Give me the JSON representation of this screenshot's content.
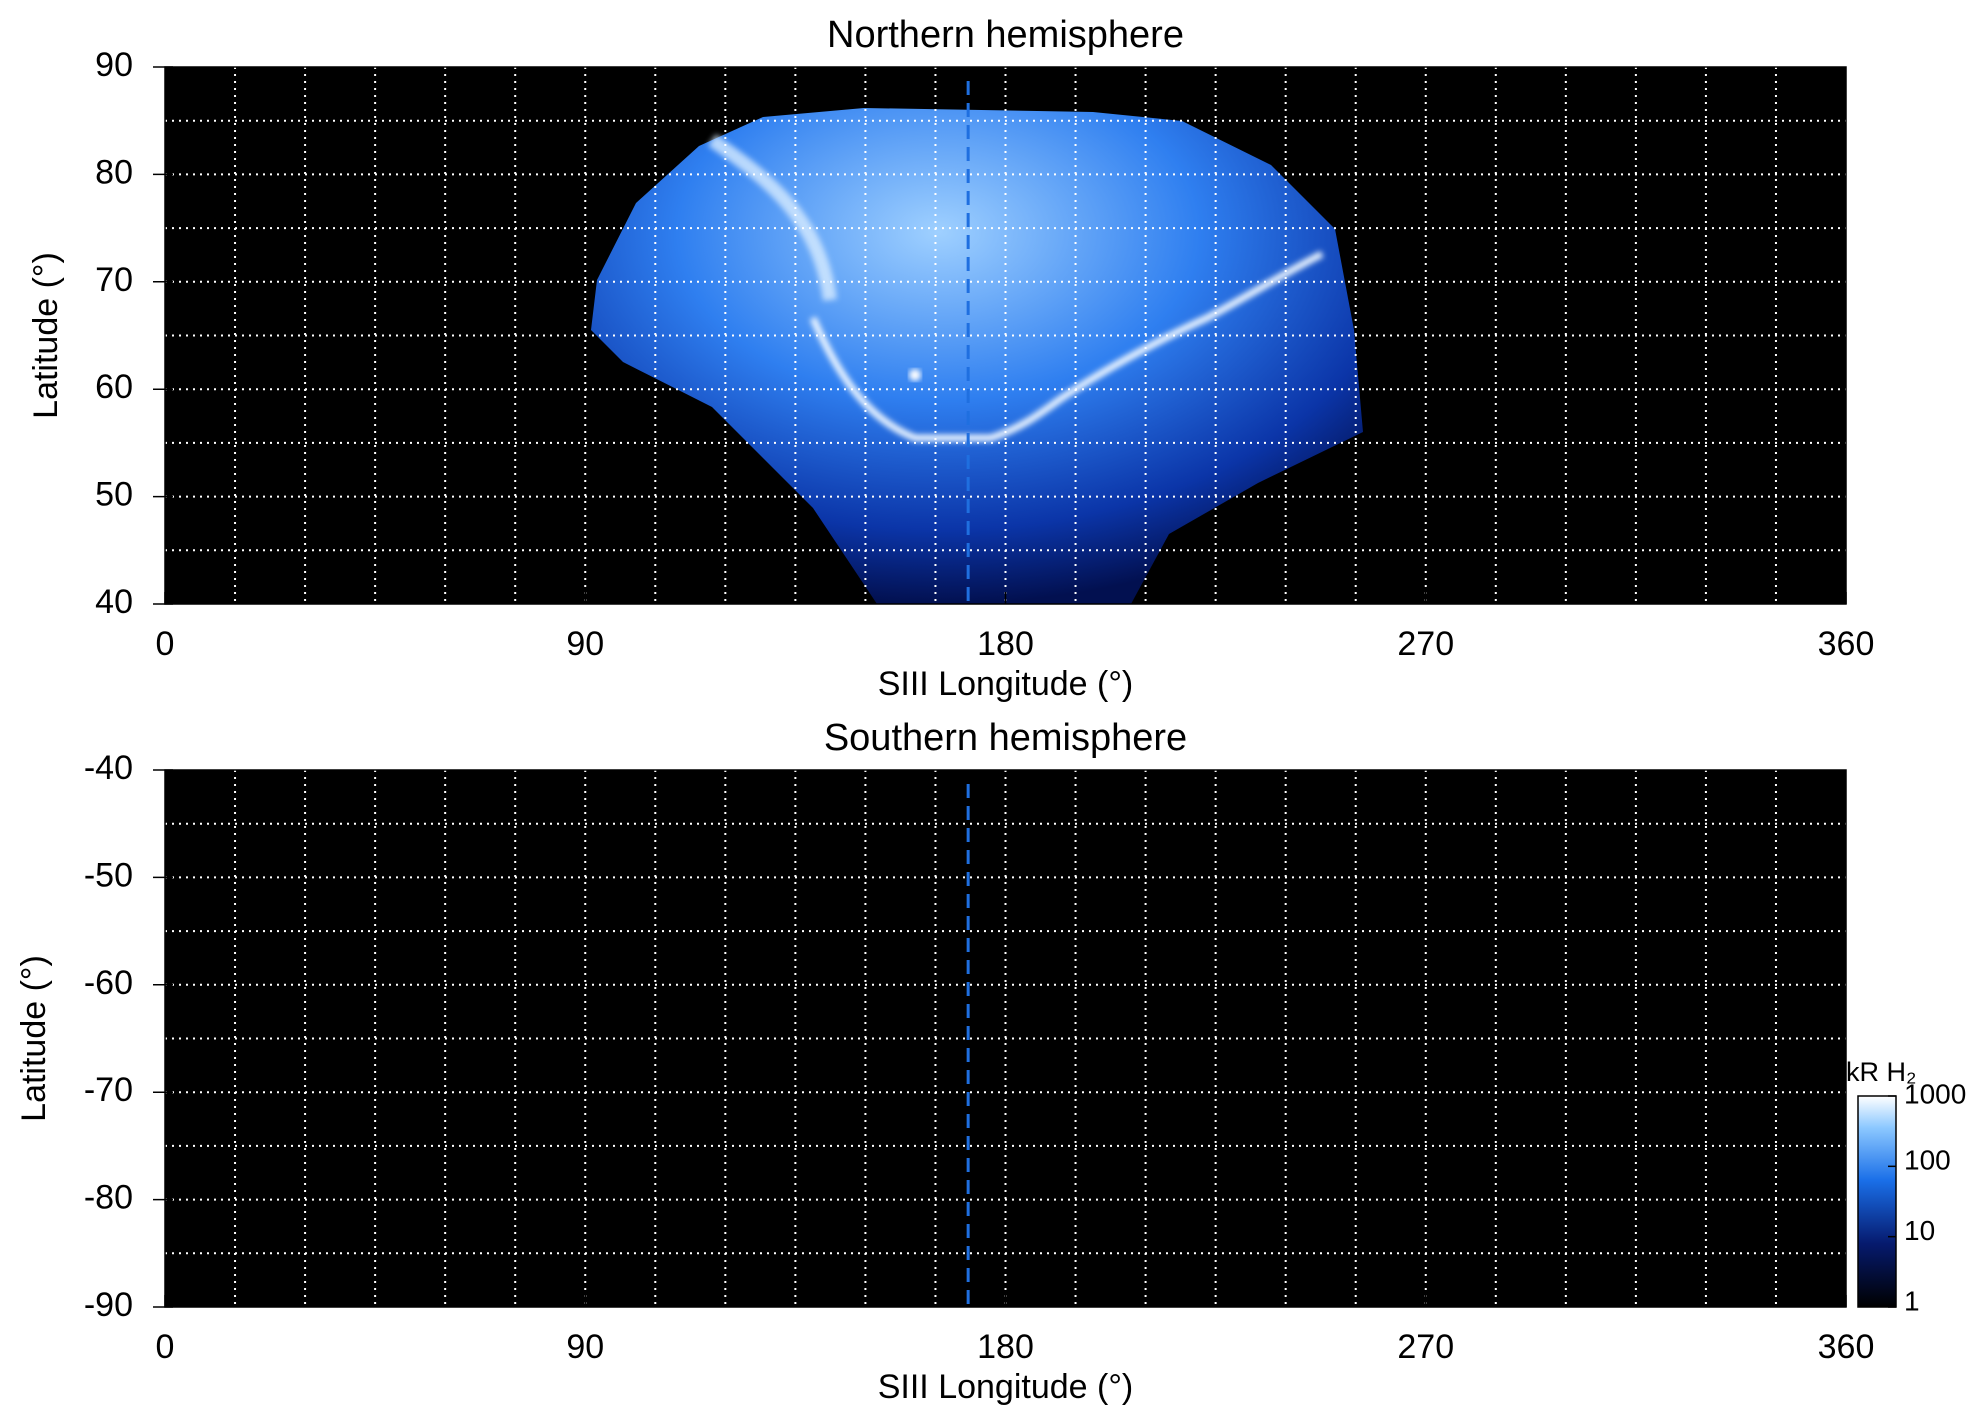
{
  "chart_data": [
    {
      "type": "heatmap",
      "title": "Northern hemisphere",
      "x_label": "SIII Longitude (°)",
      "y_label": "Latitude (°)",
      "xlim": [
        0,
        360
      ],
      "xticks": [
        0,
        90,
        180,
        270,
        360
      ],
      "ylim": [
        40,
        90
      ],
      "yticks": [
        40,
        50,
        60,
        70,
        80,
        90
      ],
      "xgrid": [
        15,
        30,
        45,
        60,
        75,
        90,
        105,
        120,
        135,
        150,
        165,
        180,
        195,
        210,
        225,
        240,
        255,
        270,
        285,
        300,
        315,
        330,
        345
      ],
      "ygrid": [
        45,
        50,
        55,
        60,
        65,
        70,
        75,
        80,
        85
      ],
      "grid": true,
      "vline": 172,
      "vline_color": "#1f6fe0"
    },
    {
      "type": "heatmap",
      "title": "Southern hemisphere",
      "x_label": "SIII Longitude (°)",
      "y_label": "Latitude (°)",
      "xlim": [
        0,
        360
      ],
      "xticks": [
        0,
        90,
        180,
        270,
        360
      ],
      "ylim": [
        -90,
        -40
      ],
      "yticks": [
        -90,
        -80,
        -70,
        -60,
        -50,
        -40
      ],
      "xgrid": [
        15,
        30,
        45,
        60,
        75,
        90,
        105,
        120,
        135,
        150,
        165,
        180,
        195,
        210,
        225,
        240,
        255,
        270,
        285,
        300,
        315,
        330,
        345
      ],
      "ygrid": [
        -85,
        -80,
        -75,
        -70,
        -65,
        -60,
        -55,
        -50,
        -45
      ],
      "grid": true,
      "vline": 172,
      "vline_color": "#1f6fe0",
      "colorbar": {
        "label": "kR H₂",
        "lim": [
          1,
          1000
        ],
        "ticks": [
          1,
          10,
          100,
          1000
        ],
        "log": true
      }
    }
  ]
}
